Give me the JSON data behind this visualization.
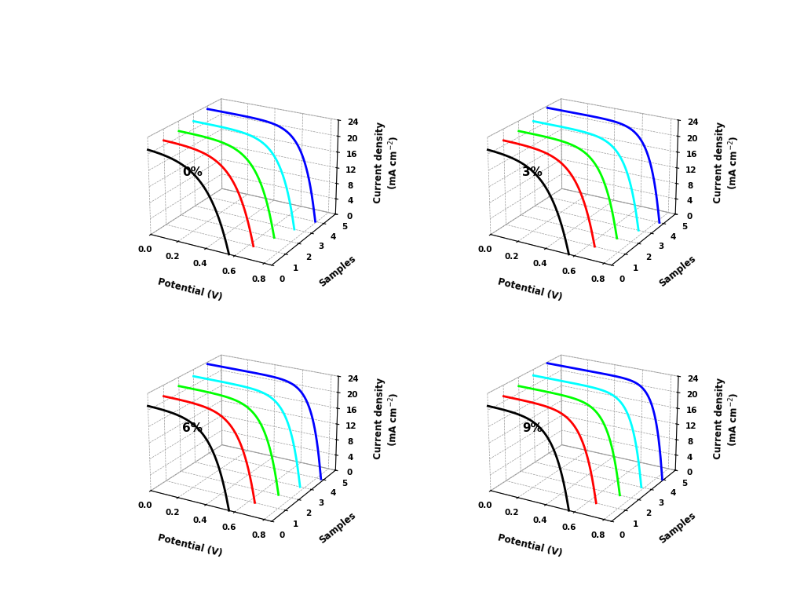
{
  "panels": [
    {
      "label": "0%"
    },
    {
      "label": "3%"
    },
    {
      "label": "6%"
    },
    {
      "label": "9%"
    }
  ],
  "colors": [
    "black",
    "red",
    "lime",
    "cyan",
    "blue"
  ],
  "voc_sets": [
    [
      0.56,
      0.63,
      0.68,
      0.73,
      0.79
    ],
    [
      0.56,
      0.64,
      0.7,
      0.76,
      0.82
    ],
    [
      0.56,
      0.64,
      0.71,
      0.77,
      0.83
    ],
    [
      0.56,
      0.65,
      0.72,
      0.78,
      0.84
    ]
  ],
  "jsc_sets": [
    [
      21.0,
      21.2,
      21.5,
      22.0,
      23.2
    ],
    [
      21.0,
      21.2,
      21.5,
      22.0,
      23.5
    ],
    [
      21.0,
      21.3,
      21.8,
      22.3,
      23.5
    ],
    [
      21.0,
      21.3,
      21.8,
      22.5,
      23.7
    ]
  ],
  "ff_sets": [
    [
      0.5,
      0.56,
      0.6,
      0.64,
      0.68
    ],
    [
      0.52,
      0.58,
      0.63,
      0.67,
      0.71
    ],
    [
      0.56,
      0.61,
      0.65,
      0.69,
      0.73
    ],
    [
      0.59,
      0.64,
      0.68,
      0.72,
      0.76
    ]
  ],
  "xlim": [
    0.0,
    0.85
  ],
  "ylim": [
    0,
    5
  ],
  "zlim": [
    0,
    24
  ],
  "xticks": [
    0.0,
    0.2,
    0.4,
    0.6,
    0.8
  ],
  "yticks": [
    0,
    1,
    2,
    3,
    4,
    5
  ],
  "zticks": [
    0,
    4,
    8,
    12,
    16,
    20,
    24
  ],
  "xlabel": "Potential (V)",
  "ylabel": "Samples",
  "zlabel": "Current density\n(mA cm$^{-2}$)",
  "elev": 22,
  "azim": -60
}
